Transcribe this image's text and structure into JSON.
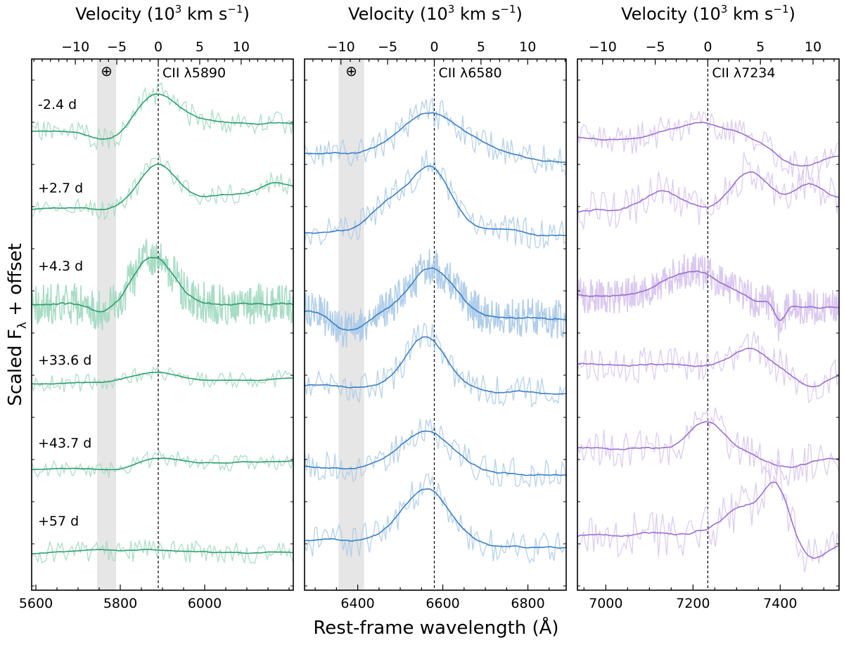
{
  "figure": {
    "ylabel": "Scaled F",
    "ylabel_sub": "λ",
    "ylabel_suffix": " + offset",
    "xlabel": "Rest-frame wavelength (Å)",
    "top_axis_label": "Velocity (10",
    "top_axis_sup": "3",
    "top_axis_unit": " km s",
    "top_axis_unit_sup": "−1",
    "top_axis_close": ")",
    "earth_symbol": "⊕",
    "epochs": [
      "-2.4 d",
      "+2.7 d",
      "+4.3 d",
      "+33.6 d",
      "+43.7 d",
      "+57 d"
    ]
  },
  "chart_data": [
    {
      "type": "line",
      "line_label": "CII λ5890",
      "rest_wavelength": 5890,
      "xlim": [
        5590,
        6210
      ],
      "xticks": [
        5600,
        5800,
        6000
      ],
      "velocity_ticks": [
        -10,
        -5,
        0,
        5,
        10
      ],
      "telluric_band": [
        5745,
        5790
      ],
      "color": "#2e9e6e",
      "color_light": "#9fd8bf",
      "seed": 11,
      "series": [
        {
          "epoch": "-2.4 d",
          "baseline": 188,
          "slope": -0.02,
          "noise": 17,
          "dense": false,
          "features": [
            [
              5780,
              45,
              18
            ],
            [
              5880,
              45,
              -45
            ],
            [
              5960,
              80,
              -10
            ]
          ]
        },
        {
          "epoch": "+2.7 d",
          "baseline": 298,
          "slope": -0.03,
          "noise": 14,
          "dense": false,
          "features": [
            [
              5765,
              30,
              6
            ],
            [
              5890,
              40,
              -58
            ],
            [
              6060,
              60,
              -8
            ],
            [
              6170,
              30,
              -22
            ]
          ]
        },
        {
          "epoch": "+4.3 d",
          "baseline": 432,
          "slope": 0.0,
          "noise": 30,
          "dense": true,
          "features": [
            [
              5880,
              45,
              -68
            ],
            [
              5760,
              30,
              12
            ]
          ]
        },
        {
          "epoch": "+33.6 d",
          "baseline": 546,
          "slope": -0.01,
          "noise": 13,
          "dense": false,
          "features": [
            [
              5880,
              50,
              -14
            ]
          ]
        },
        {
          "epoch": "+43.7 d",
          "baseline": 668,
          "slope": -0.02,
          "noise": 12,
          "dense": false,
          "features": [
            [
              5890,
              50,
              -10
            ],
            [
              5790,
              40,
              6
            ]
          ]
        },
        {
          "epoch": "+57 d",
          "baseline": 786,
          "slope": 0.0,
          "noise": 16,
          "dense": false,
          "features": [
            [
              5760,
              40,
              -4
            ],
            [
              5880,
              40,
              -3
            ]
          ]
        }
      ]
    },
    {
      "type": "line",
      "line_label": "CII λ6580",
      "rest_wavelength": 6580,
      "xlim": [
        6275,
        6890
      ],
      "xticks": [
        6400,
        6600,
        6800
      ],
      "velocity_ticks": [
        -10,
        -5,
        0,
        5,
        10
      ],
      "telluric_band": [
        6355,
        6415
      ],
      "color": "#3a7fc4",
      "color_light": "#a9c9e8",
      "seed": 23,
      "series": [
        {
          "epoch": "-2.4 d",
          "baseline": 218,
          "slope": 0.02,
          "noise": 22,
          "dense": false,
          "features": [
            [
              6570,
              70,
              -62
            ],
            [
              6700,
              60,
              -12
            ]
          ]
        },
        {
          "epoch": "+2.7 d",
          "baseline": 330,
          "slope": 0.01,
          "noise": 22,
          "dense": false,
          "features": [
            [
              6470,
              40,
              -40
            ],
            [
              6570,
              45,
              -100
            ],
            [
              6740,
              50,
              -8
            ]
          ]
        },
        {
          "epoch": "+4.3 d",
          "baseline": 442,
          "slope": 0.02,
          "noise": 28,
          "dense": true,
          "features": [
            [
              6380,
              35,
              28
            ],
            [
              6575,
              50,
              -68
            ]
          ]
        },
        {
          "epoch": "+33.6 d",
          "baseline": 548,
          "slope": 0.02,
          "noise": 22,
          "dense": false,
          "features": [
            [
              6560,
              45,
              -78
            ]
          ]
        },
        {
          "epoch": "+43.7 d",
          "baseline": 664,
          "slope": 0.02,
          "noise": 22,
          "dense": false,
          "features": [
            [
              6560,
              60,
              -58
            ]
          ]
        },
        {
          "epoch": "+57 d",
          "baseline": 768,
          "slope": 0.02,
          "noise": 24,
          "dense": false,
          "features": [
            [
              6560,
              55,
              -80
            ]
          ]
        }
      ]
    },
    {
      "type": "line",
      "line_label": "CII λ7234",
      "rest_wavelength": 7234,
      "xlim": [
        6935,
        7535
      ],
      "xticks": [
        7000,
        7200,
        7400
      ],
      "velocity_ticks": [
        -10,
        -5,
        0,
        5,
        10
      ],
      "telluric_band": null,
      "color": "#9b6fd0",
      "color_light": "#d7c3ee",
      "seed": 37,
      "series": [
        {
          "epoch": "-2.4 d",
          "baseline": 198,
          "slope": 0.04,
          "noise": 22,
          "dense": false,
          "features": [
            [
              7230,
              90,
              -34
            ],
            [
              7440,
              40,
              20
            ]
          ]
        },
        {
          "epoch": "+2.7 d",
          "baseline": 300,
          "slope": 0.0,
          "noise": 28,
          "dense": false,
          "features": [
            [
              7130,
              40,
              -30
            ],
            [
              7330,
              40,
              -60
            ],
            [
              7470,
              40,
              -40
            ]
          ]
        },
        {
          "epoch": "+4.3 d",
          "baseline": 420,
          "slope": 0.03,
          "noise": 26,
          "dense": true,
          "features": [
            [
              7200,
              70,
              -42
            ],
            [
              7400,
              8,
              34
            ]
          ]
        },
        {
          "epoch": "+33.6 d",
          "baseline": 516,
          "slope": 0.02,
          "noise": 26,
          "dense": false,
          "features": [
            [
              7330,
              40,
              -28
            ],
            [
              7470,
              35,
              24
            ]
          ]
        },
        {
          "epoch": "+43.7 d",
          "baseline": 636,
          "slope": 0.02,
          "noise": 28,
          "dense": false,
          "features": [
            [
              7230,
              40,
              -42
            ],
            [
              7420,
              50,
              18
            ]
          ]
        },
        {
          "epoch": "+57 d",
          "baseline": 760,
          "slope": 0.0,
          "noise": 34,
          "dense": false,
          "features": [
            [
              7310,
              40,
              -38
            ],
            [
              7390,
              25,
              -80
            ],
            [
              7480,
              35,
              40
            ]
          ]
        }
      ]
    }
  ]
}
